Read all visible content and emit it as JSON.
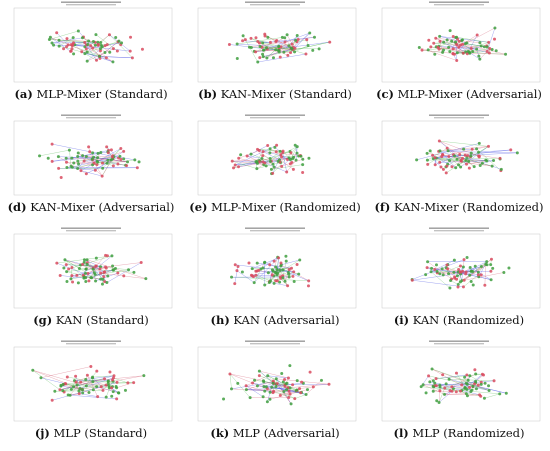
{
  "figure": {
    "colors": {
      "pointA": "#3f9f3f",
      "pointB": "#d94b5f",
      "edgeA": "#3b46e0",
      "edgeB": "#4fb84f",
      "edgeC": "#d35a70"
    },
    "panels": [
      {
        "label": "(a)",
        "name": "MLP-Mixer (Standard)"
      },
      {
        "label": "(b)",
        "name": "KAN-Mixer (Standard)"
      },
      {
        "label": "(c)",
        "name": "MLP-Mixer (Adversarial)"
      },
      {
        "label": "(d)",
        "name": "KAN-Mixer (Adversarial)"
      },
      {
        "label": "(e)",
        "name": "MLP-Mixer (Randomized)"
      },
      {
        "label": "(f)",
        "name": "KAN-Mixer (Randomized)"
      },
      {
        "label": "(g)",
        "name": "KAN (Standard)"
      },
      {
        "label": "(h)",
        "name": "KAN (Adversarial)"
      },
      {
        "label": "(i)",
        "name": "KAN (Randomized)"
      },
      {
        "label": "(j)",
        "name": "MLP (Standard)"
      },
      {
        "label": "(k)",
        "name": "MLP (Adversarial)"
      },
      {
        "label": "(l)",
        "name": "MLP (Randomized)"
      }
    ]
  }
}
